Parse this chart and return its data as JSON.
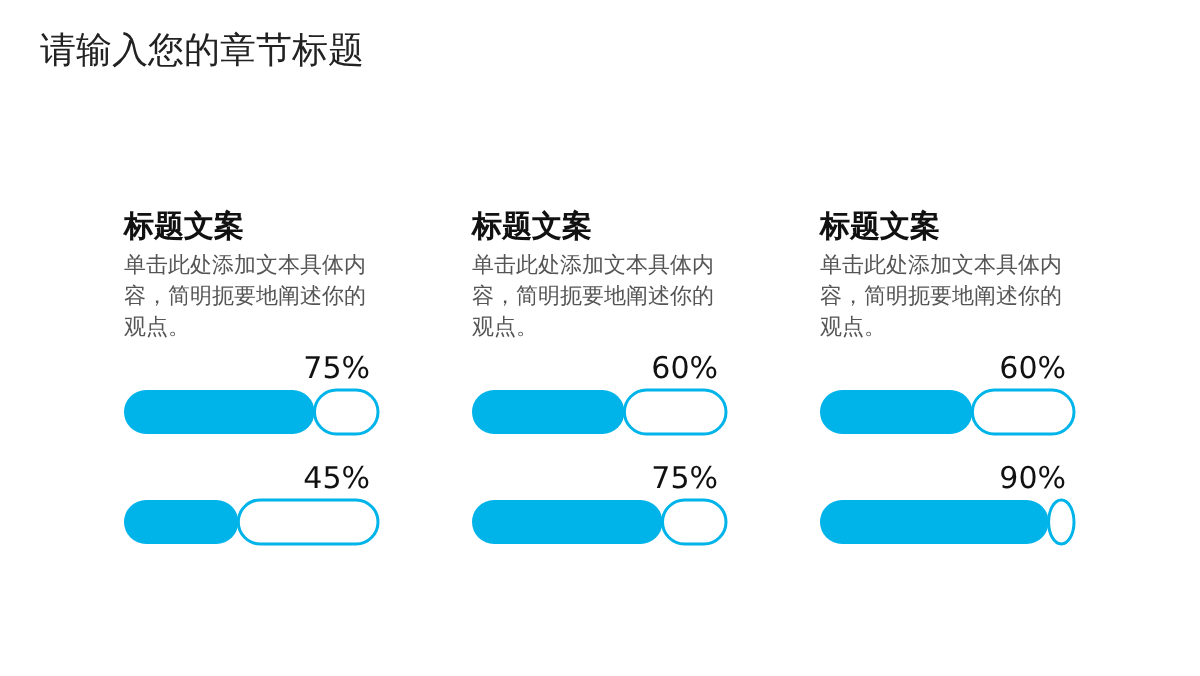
{
  "chart_data": [
    {
      "type": "other",
      "title": "请输入您的章节标题"
    },
    {
      "type": "bar",
      "orientation": "horizontal",
      "stacked": true,
      "title": "标题文案",
      "subtitle": "单击此处添加文本具体内容，简明扼要地阐述你的观点。",
      "categories": [
        null,
        null
      ],
      "xlim": [
        0,
        100
      ],
      "series": [
        {
          "color": "#00b4ea",
          "values": [
            75,
            45
          ],
          "value_labels": [
            "75%",
            "45%"
          ]
        },
        {
          "color": "#ffffff",
          "values": [
            25,
            55
          ]
        }
      ]
    },
    {
      "type": "bar",
      "orientation": "horizontal",
      "stacked": true,
      "title": "标题文案",
      "subtitle": "单击此处添加文本具体内容，简明扼要地阐述你的观点。",
      "categories": [
        null,
        null
      ],
      "xlim": [
        0,
        100
      ],
      "series": [
        {
          "color": "#00b4ea",
          "values": [
            60,
            75
          ],
          "value_labels": [
            "60%",
            "75%"
          ]
        },
        {
          "color": "#ffffff",
          "values": [
            40,
            25
          ]
        }
      ]
    },
    {
      "type": "bar",
      "orientation": "horizontal",
      "stacked": true,
      "title": "标题文案",
      "subtitle": "单击此处添加文本具体内容，简明扼要地阐述你的观点。",
      "categories": [
        null,
        null
      ],
      "xlim": [
        0,
        100
      ],
      "series": [
        {
          "color": "#00b4ea",
          "values": [
            60,
            90
          ],
          "value_labels": [
            "60%",
            "90%"
          ]
        },
        {
          "color": "#ffffff",
          "values": [
            40,
            10
          ]
        }
      ]
    }
  ]
}
